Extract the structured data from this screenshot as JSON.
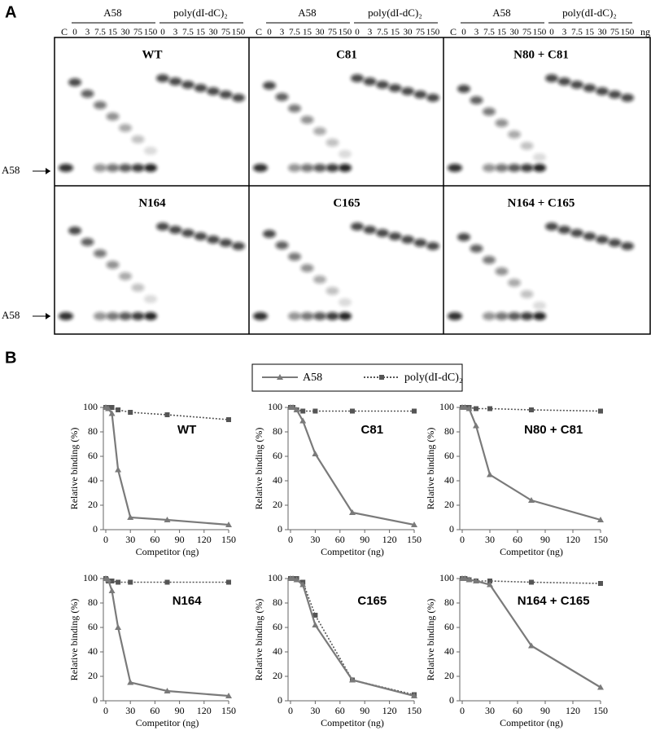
{
  "panel_a": {
    "label": "A",
    "control": "C",
    "competitors": [
      "A58",
      "poly(dI-dC)₂"
    ],
    "lanes": [
      "0",
      "3",
      "7.5",
      "15",
      "30",
      "75",
      "150"
    ],
    "unit": "ng",
    "gels": [
      "WT",
      "C81",
      "N80 + C81",
      "N164",
      "C165",
      "N164 + C165"
    ],
    "probe": "A58"
  },
  "panel_b": {
    "label": "B"
  },
  "legend": [
    {
      "name": "A58",
      "color": "#7a7a7a",
      "marker": "triangle",
      "dash": false
    },
    {
      "name": "poly(dI-dC)₂",
      "color": "#555555",
      "marker": "square",
      "dash": true
    }
  ],
  "chart_data": [
    {
      "type": "line",
      "title": "WT",
      "xlabel": "Competitor (ng)",
      "ylabel": "Relative binding (%)",
      "x": [
        0,
        3,
        7.5,
        15,
        30,
        75,
        150
      ],
      "series": [
        {
          "values": [
            100,
            99,
            95,
            49,
            10,
            8,
            4
          ]
        },
        {
          "values": [
            100,
            100,
            100,
            98,
            96,
            94,
            90
          ]
        }
      ],
      "xlim": [
        0,
        150
      ],
      "ylim": [
        0,
        100
      ],
      "xticks": [
        0,
        30,
        60,
        90,
        120,
        150
      ],
      "yticks": [
        0,
        20,
        40,
        60,
        80,
        100
      ]
    },
    {
      "type": "line",
      "title": "C81",
      "xlabel": "Competitor (ng)",
      "ylabel": "Relative binding (%)",
      "x": [
        0,
        3,
        7.5,
        15,
        30,
        75,
        150
      ],
      "series": [
        {
          "values": [
            100,
            100,
            98,
            89,
            62,
            14,
            4
          ]
        },
        {
          "values": [
            100,
            100,
            98,
            97,
            97,
            97,
            97
          ]
        }
      ],
      "xlim": [
        0,
        150
      ],
      "ylim": [
        0,
        100
      ],
      "xticks": [
        0,
        30,
        60,
        90,
        120,
        150
      ],
      "yticks": [
        0,
        20,
        40,
        60,
        80,
        100
      ]
    },
    {
      "type": "line",
      "title": "N80 + C81",
      "xlabel": "Competitor (ng)",
      "ylabel": "Relative binding (%)",
      "x": [
        0,
        3,
        7.5,
        15,
        30,
        75,
        150
      ],
      "series": [
        {
          "values": [
            100,
            100,
            99,
            85,
            45,
            24,
            8
          ]
        },
        {
          "values": [
            100,
            100,
            100,
            99,
            99,
            98,
            97
          ]
        }
      ],
      "xlim": [
        0,
        150
      ],
      "ylim": [
        0,
        100
      ],
      "xticks": [
        0,
        30,
        60,
        90,
        120,
        150
      ],
      "yticks": [
        0,
        20,
        40,
        60,
        80,
        100
      ]
    },
    {
      "type": "line",
      "title": "N164",
      "xlabel": "Competitor (ng)",
      "ylabel": "Relative binding (%)",
      "x": [
        0,
        3,
        7.5,
        15,
        30,
        75,
        150
      ],
      "series": [
        {
          "values": [
            100,
            99,
            90,
            60,
            15,
            8,
            4
          ]
        },
        {
          "values": [
            100,
            98,
            98,
            97,
            97,
            97,
            97
          ]
        }
      ],
      "xlim": [
        0,
        150
      ],
      "ylim": [
        0,
        100
      ],
      "xticks": [
        0,
        30,
        60,
        90,
        120,
        150
      ],
      "yticks": [
        0,
        20,
        40,
        60,
        80,
        100
      ]
    },
    {
      "type": "line",
      "title": "C165",
      "xlabel": "Competitor (ng)",
      "ylabel": "Relative binding (%)",
      "x": [
        0,
        3,
        7.5,
        15,
        30,
        75,
        150
      ],
      "series": [
        {
          "values": [
            100,
            100,
            99,
            95,
            62,
            17,
            4
          ]
        },
        {
          "values": [
            100,
            100,
            100,
            97,
            70,
            17,
            5
          ]
        }
      ],
      "xlim": [
        0,
        150
      ],
      "ylim": [
        0,
        100
      ],
      "xticks": [
        0,
        30,
        60,
        90,
        120,
        150
      ],
      "yticks": [
        0,
        20,
        40,
        60,
        80,
        100
      ]
    },
    {
      "type": "line",
      "title": "N164 + C165",
      "xlabel": "Competitor (ng)",
      "ylabel": "Relative binding (%)",
      "x": [
        0,
        3,
        7.5,
        15,
        30,
        75,
        150
      ],
      "series": [
        {
          "values": [
            100,
            100,
            99,
            98,
            95,
            45,
            11
          ]
        },
        {
          "values": [
            100,
            100,
            99,
            98,
            98,
            97,
            96
          ]
        }
      ],
      "xlim": [
        0,
        150
      ],
      "ylim": [
        0,
        100
      ],
      "xticks": [
        0,
        30,
        60,
        90,
        120,
        150
      ],
      "yticks": [
        0,
        20,
        40,
        60,
        80,
        100
      ]
    }
  ]
}
